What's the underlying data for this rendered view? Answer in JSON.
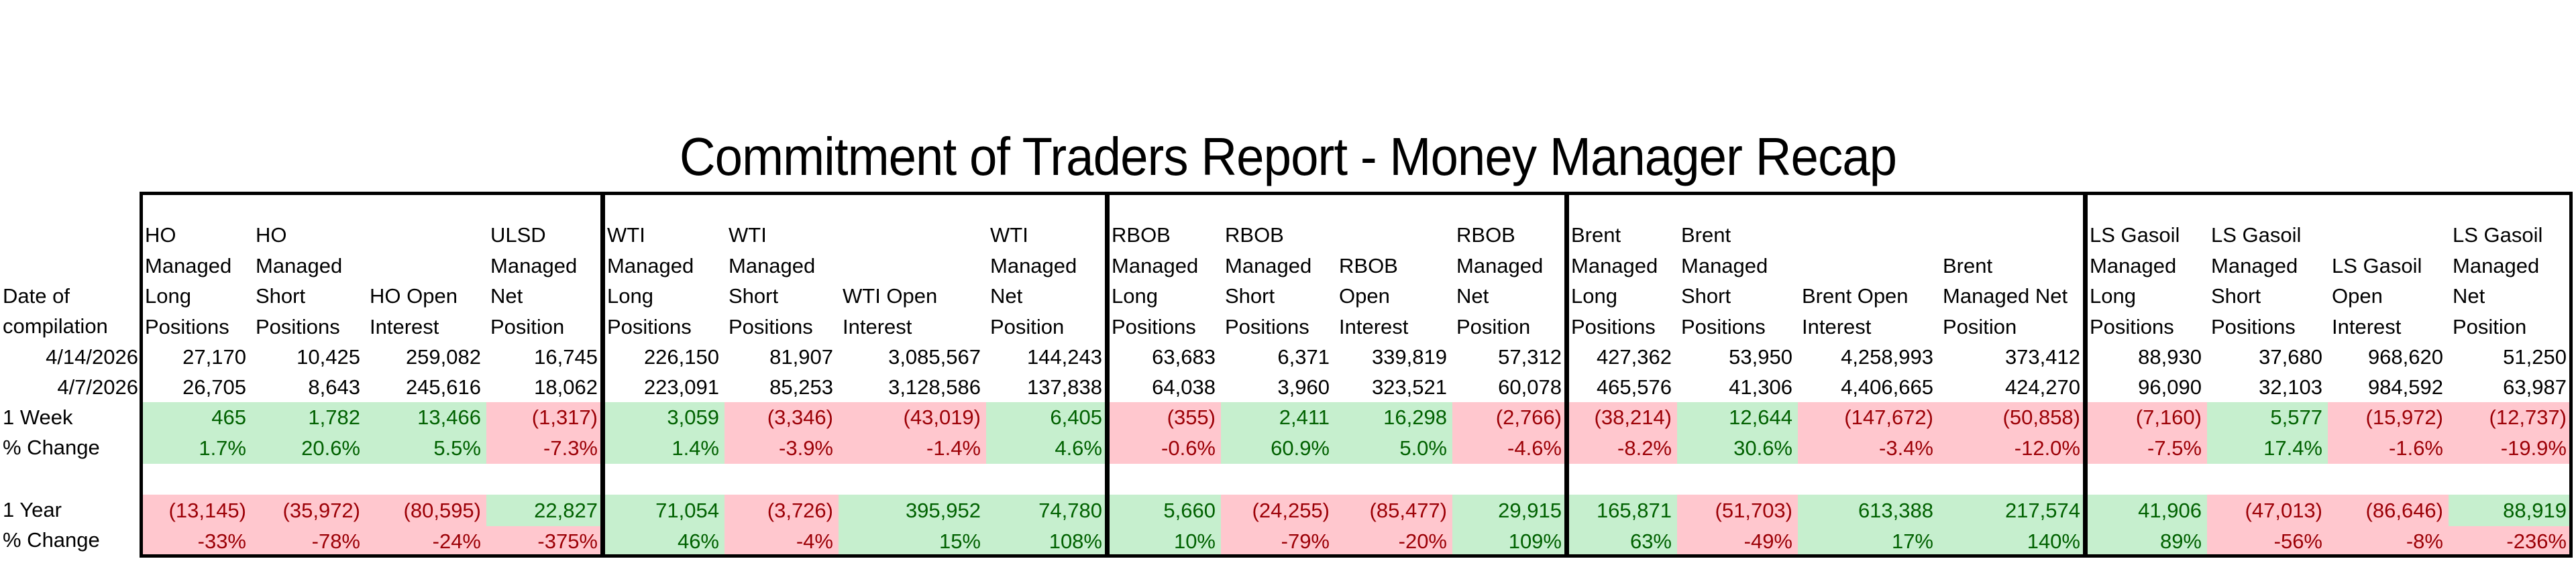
{
  "title": "Commitment of Traders Report - Money Manager Recap",
  "row_labels": {
    "header": [
      "Date of",
      "compilation"
    ],
    "date_current": "4/14/2026",
    "date_prior": "4/7/2026",
    "week_change": "1 Week",
    "week_pct": "% Change",
    "year_change": "1 Year",
    "year_pct": "% Change"
  },
  "colors": {
    "positive_bg": "#c6efce",
    "positive_text": "#006100",
    "negative_bg": "#ffc7ce",
    "negative_text": "#9c0006"
  },
  "groups": [
    {
      "name": "HO",
      "columns": [
        {
          "header": [
            "HO",
            "Managed",
            "Long",
            "Positions"
          ],
          "current": "27,170",
          "prior": "26,705",
          "week": "465",
          "week_pct": "1.7%",
          "year": "(13,145)",
          "year_pct": "-33%"
        },
        {
          "header": [
            "HO",
            "Managed",
            "Short",
            "Positions"
          ],
          "current": "10,425",
          "prior": "8,643",
          "week": "1,782",
          "week_pct": "20.6%",
          "year": "(35,972)",
          "year_pct": "-78%"
        },
        {
          "header": [
            "HO Open",
            "Interest"
          ],
          "current": "259,082",
          "prior": "245,616",
          "week": "13,466",
          "week_pct": "5.5%",
          "year": "(80,595)",
          "year_pct": "-24%"
        },
        {
          "header": [
            "ULSD",
            "Managed",
            "Net",
            "Position"
          ],
          "current": "16,745",
          "prior": "18,062",
          "week": "(1,317)",
          "week_pct": "-7.3%",
          "year": "22,827",
          "year_pct": "-375%"
        }
      ]
    },
    {
      "name": "WTI",
      "columns": [
        {
          "header": [
            "WTI",
            "Managed",
            "Long",
            "Positions"
          ],
          "current": "226,150",
          "prior": "223,091",
          "week": "3,059",
          "week_pct": "1.4%",
          "year": "71,054",
          "year_pct": "46%"
        },
        {
          "header": [
            "WTI",
            "Managed",
            "Short",
            "Positions"
          ],
          "current": "81,907",
          "prior": "85,253",
          "week": "(3,346)",
          "week_pct": "-3.9%",
          "year": "(3,726)",
          "year_pct": "-4%"
        },
        {
          "header": [
            "WTI Open",
            "Interest"
          ],
          "current": "3,085,567",
          "prior": "3,128,586",
          "week": "(43,019)",
          "week_pct": "-1.4%",
          "year": "395,952",
          "year_pct": "15%"
        },
        {
          "header": [
            "WTI",
            "Managed",
            "Net",
            "Position"
          ],
          "current": "144,243",
          "prior": "137,838",
          "week": "6,405",
          "week_pct": "4.6%",
          "year": "74,780",
          "year_pct": "108%"
        }
      ]
    },
    {
      "name": "RBOB",
      "columns": [
        {
          "header": [
            "RBOB",
            "Managed",
            "Long",
            "Positions"
          ],
          "current": "63,683",
          "prior": "64,038",
          "week": "(355)",
          "week_pct": "-0.6%",
          "year": "5,660",
          "year_pct": "10%"
        },
        {
          "header": [
            "RBOB",
            "Managed",
            "Short",
            "Positions"
          ],
          "current": "6,371",
          "prior": "3,960",
          "week": "2,411",
          "week_pct": "60.9%",
          "year": "(24,255)",
          "year_pct": "-79%"
        },
        {
          "header": [
            "RBOB Open",
            "Interest"
          ],
          "current": "339,819",
          "prior": "323,521",
          "week": "16,298",
          "week_pct": "5.0%",
          "year": "(85,477)",
          "year_pct": "-20%"
        },
        {
          "header": [
            "RBOB",
            "Managed",
            "Net",
            "Position"
          ],
          "current": "57,312",
          "prior": "60,078",
          "week": "(2,766)",
          "week_pct": "-4.6%",
          "year": "29,915",
          "year_pct": "109%"
        }
      ]
    },
    {
      "name": "Brent",
      "columns": [
        {
          "header": [
            "Brent",
            "Managed",
            "Long",
            "Positions"
          ],
          "current": "427,362",
          "prior": "465,576",
          "week": "(38,214)",
          "week_pct": "-8.2%",
          "year": "165,871",
          "year_pct": "63%"
        },
        {
          "header": [
            "Brent",
            "Managed",
            "Short",
            "Positions"
          ],
          "current": "53,950",
          "prior": "41,306",
          "week": "12,644",
          "week_pct": "30.6%",
          "year": "(51,703)",
          "year_pct": "-49%"
        },
        {
          "header": [
            "Brent Open",
            "Interest"
          ],
          "current": "4,258,993",
          "prior": "4,406,665",
          "week": "(147,672)",
          "week_pct": "-3.4%",
          "year": "613,388",
          "year_pct": "17%"
        },
        {
          "header": [
            "Brent",
            "Managed Net",
            "Position"
          ],
          "current": "373,412",
          "prior": "424,270",
          "week": "(50,858)",
          "week_pct": "-12.0%",
          "year": "217,574",
          "year_pct": "140%"
        }
      ]
    },
    {
      "name": "LS Gasoil",
      "columns": [
        {
          "header": [
            "LS Gasoil",
            "Managed",
            "Long",
            "Positions"
          ],
          "current": "88,930",
          "prior": "96,090",
          "week": "(7,160)",
          "week_pct": "-7.5%",
          "year": "41,906",
          "year_pct": "89%"
        },
        {
          "header": [
            "LS Gasoil",
            "Managed",
            "Short",
            "Positions"
          ],
          "current": "37,680",
          "prior": "32,103",
          "week": "5,577",
          "week_pct": "17.4%",
          "year": "(47,013)",
          "year_pct": "-56%"
        },
        {
          "header": [
            "LS Gasoil",
            "Open",
            "Interest"
          ],
          "current": "968,620",
          "prior": "984,592",
          "week": "(15,972)",
          "week_pct": "-1.6%",
          "year": "(86,646)",
          "year_pct": "-8%"
        },
        {
          "header": [
            "LS Gasoil",
            "Managed",
            "Net",
            "Position"
          ],
          "current": "51,250",
          "prior": "63,987",
          "week": "(12,737)",
          "week_pct": "-19.9%",
          "year": "88,919",
          "year_pct": "-236%"
        }
      ]
    }
  ]
}
